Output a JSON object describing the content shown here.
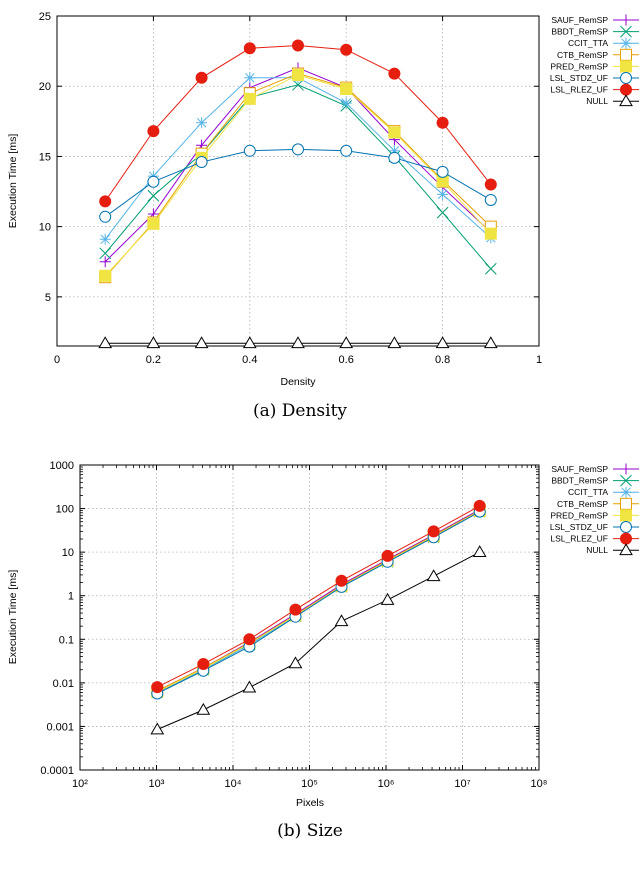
{
  "chart_data": [
    {
      "type": "line",
      "caption": "(a) Density",
      "xlabel": "Density",
      "ylabel": "Execution Time [ms]",
      "xlim": [
        0,
        1
      ],
      "ylim": [
        1.5,
        25
      ],
      "xticks": [
        0,
        0.2,
        0.4,
        0.6,
        0.8,
        1
      ],
      "xtick_labels": [
        "0",
        "0.2",
        "0.4",
        "0.6",
        "0.8",
        "1"
      ],
      "yticks": [
        5,
        10,
        15,
        20,
        25
      ],
      "ytick_labels": [
        "5",
        "10",
        "15",
        "20",
        "25"
      ],
      "xscale": "linear",
      "yscale": "linear",
      "grid": true,
      "legend_position": "outside-right",
      "x": [
        0.1,
        0.2,
        0.3,
        0.4,
        0.5,
        0.6,
        0.7,
        0.8,
        0.9
      ],
      "series": [
        {
          "name": "SAUF_RemSP",
          "color": "#9400d3",
          "marker": "plus",
          "values": [
            7.5,
            10.9,
            15.8,
            19.9,
            21.3,
            19.9,
            16.2,
            12.8,
            9.6
          ]
        },
        {
          "name": "BBDT_RemSP",
          "color": "#009e73",
          "marker": "x",
          "values": [
            8.1,
            12.2,
            15.2,
            19.2,
            20.1,
            18.6,
            15.0,
            11.0,
            7.0
          ]
        },
        {
          "name": "CCIT_TTA",
          "color": "#56b4e9",
          "marker": "star",
          "values": [
            9.1,
            13.6,
            17.4,
            20.6,
            20.6,
            18.8,
            15.4,
            12.3,
            9.2
          ]
        },
        {
          "name": "CTB_RemSP",
          "color": "#e69f00",
          "marker": "square-open",
          "values": [
            6.4,
            10.3,
            15.2,
            19.5,
            20.9,
            19.9,
            16.8,
            13.3,
            10.0
          ]
        },
        {
          "name": "PRED_RemSP",
          "color": "#f0e442",
          "marker": "square-filled",
          "values": [
            6.5,
            10.2,
            14.9,
            19.1,
            20.8,
            19.8,
            16.7,
            13.2,
            9.5
          ]
        },
        {
          "name": "LSL_STDZ_UF",
          "color": "#0072b2",
          "marker": "circle-open",
          "values": [
            10.7,
            13.2,
            14.6,
            15.4,
            15.5,
            15.4,
            14.9,
            13.9,
            11.9
          ]
        },
        {
          "name": "LSL_RLEZ_UF",
          "color": "#e51e10",
          "marker": "circle-filled",
          "values": [
            11.8,
            16.8,
            20.6,
            22.7,
            22.9,
            22.6,
            20.9,
            17.4,
            13.0
          ]
        },
        {
          "name": "NULL",
          "color": "#000000",
          "marker": "triangle-open",
          "values": [
            1.7,
            1.7,
            1.7,
            1.7,
            1.7,
            1.7,
            1.7,
            1.7,
            1.7
          ]
        }
      ]
    },
    {
      "type": "line",
      "caption": "(b) Size",
      "xlabel": "Pixels",
      "ylabel": "Execution Time [ms]",
      "xlim": [
        100,
        100000000
      ],
      "ylim": [
        0.0001,
        1000
      ],
      "xtick_labels": [
        "10²",
        "10³",
        "10⁴",
        "10⁵",
        "10⁶",
        "10⁷",
        "10⁸"
      ],
      "ytick_labels": [
        "0.0001",
        "0.001",
        "0.01",
        "0.1",
        "1",
        "10",
        "100",
        "1000"
      ],
      "xscale": "log",
      "yscale": "log",
      "grid": true,
      "legend_position": "outside-right",
      "x": [
        1024,
        4096,
        16384,
        65536,
        262144,
        1048576,
        4194304,
        16777216
      ],
      "series": [
        {
          "name": "SAUF_RemSP",
          "color": "#9400d3",
          "marker": "plus",
          "values": [
            0.0065,
            0.022,
            0.085,
            0.38,
            1.8,
            6.8,
            25,
            95
          ]
        },
        {
          "name": "BBDT_RemSP",
          "color": "#009e73",
          "marker": "x",
          "values": [
            0.006,
            0.02,
            0.075,
            0.34,
            1.6,
            6.0,
            22,
            85
          ]
        },
        {
          "name": "CCIT_TTA",
          "color": "#56b4e9",
          "marker": "star",
          "values": [
            0.006,
            0.02,
            0.075,
            0.34,
            1.6,
            6.0,
            22,
            85
          ]
        },
        {
          "name": "CTB_RemSP",
          "color": "#e69f00",
          "marker": "square-open",
          "values": [
            0.0065,
            0.022,
            0.082,
            0.36,
            1.7,
            6.5,
            24,
            90
          ]
        },
        {
          "name": "PRED_RemSP",
          "color": "#f0e442",
          "marker": "square-filled",
          "values": [
            0.0062,
            0.021,
            0.08,
            0.35,
            1.65,
            6.3,
            23,
            88
          ]
        },
        {
          "name": "LSL_STDZ_UF",
          "color": "#0072b2",
          "marker": "circle-open",
          "values": [
            0.0057,
            0.019,
            0.068,
            0.33,
            1.6,
            6.0,
            22,
            85
          ]
        },
        {
          "name": "LSL_RLEZ_UF",
          "color": "#e51e10",
          "marker": "circle-filled",
          "values": [
            0.008,
            0.027,
            0.1,
            0.48,
            2.2,
            8.2,
            30,
            115
          ]
        },
        {
          "name": "NULL",
          "color": "#000000",
          "marker": "triangle-open",
          "values": [
            0.00085,
            0.0024,
            0.0078,
            0.028,
            0.26,
            0.8,
            2.8,
            10
          ]
        }
      ]
    }
  ]
}
